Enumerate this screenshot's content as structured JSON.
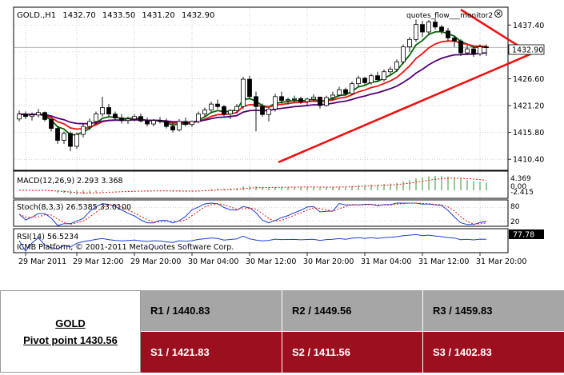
{
  "chart_data": {
    "type": "candlestick",
    "header": {
      "symbol": "GOLD.,H1",
      "open": "1432.70",
      "high": "1433.50",
      "low": "1431.20",
      "close": "1432.90",
      "indicator_label": "quotes_flow___monitor2"
    },
    "price_axis": {
      "range": [
        1408.5,
        1440.5
      ],
      "ticks": [
        "1437.40",
        "1432.00",
        "1426.60",
        "1421.20",
        "1415.80",
        "1410.40"
      ],
      "current_price": "1432.90"
    },
    "time_axis": {
      "labels": [
        "29 Mar 2011",
        "29 Mar 12:00",
        "29 Mar 20:00",
        "30 Mar 04:00",
        "30 Mar 12:00",
        "30 Mar 20:00",
        "31 Mar 04:00",
        "31 Mar 12:00",
        "31 Mar 20:00"
      ]
    },
    "candles": [
      [
        1418.5,
        1420.2,
        1418.0,
        1419.5
      ],
      [
        1419.5,
        1420.0,
        1418.5,
        1419.0
      ],
      [
        1419.0,
        1419.8,
        1418.2,
        1419.3
      ],
      [
        1419.3,
        1420.5,
        1418.8,
        1419.8
      ],
      [
        1419.8,
        1420.0,
        1418.0,
        1418.4
      ],
      [
        1418.4,
        1418.8,
        1416.0,
        1416.6
      ],
      [
        1416.6,
        1417.0,
        1413.5,
        1414.2
      ],
      [
        1414.2,
        1416.0,
        1413.5,
        1415.6
      ],
      [
        1415.6,
        1416.0,
        1412.0,
        1413.0
      ],
      [
        1413.0,
        1415.8,
        1412.5,
        1415.4
      ],
      [
        1415.4,
        1417.5,
        1414.8,
        1417.0
      ],
      [
        1417.0,
        1418.6,
        1416.3,
        1418.0
      ],
      [
        1418.0,
        1420.0,
        1417.5,
        1419.5
      ],
      [
        1419.5,
        1423.0,
        1419.0,
        1420.8
      ],
      [
        1420.8,
        1421.5,
        1419.0,
        1419.5
      ],
      [
        1419.5,
        1420.0,
        1418.3,
        1418.7
      ],
      [
        1418.7,
        1419.5,
        1417.6,
        1418.2
      ],
      [
        1418.2,
        1419.0,
        1417.5,
        1418.5
      ],
      [
        1418.5,
        1419.5,
        1418.0,
        1419.0
      ],
      [
        1419.0,
        1419.6,
        1417.8,
        1418.1
      ],
      [
        1418.1,
        1418.8,
        1417.0,
        1417.5
      ],
      [
        1417.5,
        1418.5,
        1417.0,
        1418.2
      ],
      [
        1418.2,
        1418.9,
        1417.6,
        1418.0
      ],
      [
        1418.0,
        1418.6,
        1416.6,
        1417.0
      ],
      [
        1417.0,
        1417.8,
        1415.8,
        1416.3
      ],
      [
        1416.3,
        1418.5,
        1416.0,
        1418.0
      ],
      [
        1418.0,
        1418.8,
        1417.0,
        1417.4
      ],
      [
        1417.4,
        1418.2,
        1416.9,
        1418.0
      ],
      [
        1418.0,
        1420.0,
        1417.6,
        1419.5
      ],
      [
        1419.5,
        1420.8,
        1419.0,
        1420.3
      ],
      [
        1420.3,
        1422.0,
        1419.8,
        1421.5
      ],
      [
        1421.5,
        1422.4,
        1420.5,
        1421.0
      ],
      [
        1421.0,
        1421.3,
        1419.0,
        1419.5
      ],
      [
        1419.5,
        1420.5,
        1418.5,
        1420.2
      ],
      [
        1420.2,
        1421.5,
        1419.6,
        1421.0
      ],
      [
        1421.0,
        1427.0,
        1420.5,
        1426.5
      ],
      [
        1426.5,
        1427.2,
        1422.5,
        1423.0
      ],
      [
        1423.0,
        1424.0,
        1416.0,
        1421.0
      ],
      [
        1421.0,
        1421.6,
        1419.0,
        1419.4
      ],
      [
        1419.4,
        1420.8,
        1418.0,
        1420.5
      ],
      [
        1420.5,
        1423.6,
        1420.0,
        1423.0
      ],
      [
        1423.0,
        1424.0,
        1421.6,
        1422.2
      ],
      [
        1422.2,
        1422.8,
        1421.4,
        1422.4
      ],
      [
        1422.4,
        1423.2,
        1421.8,
        1422.6
      ],
      [
        1422.6,
        1423.0,
        1421.5,
        1422.0
      ],
      [
        1422.0,
        1422.8,
        1421.2,
        1422.5
      ],
      [
        1422.5,
        1423.5,
        1421.9,
        1422.9
      ],
      [
        1422.9,
        1423.0,
        1420.6,
        1421.2
      ],
      [
        1421.2,
        1423.2,
        1421.0,
        1422.8
      ],
      [
        1422.8,
        1424.0,
        1422.2,
        1423.3
      ],
      [
        1423.3,
        1425.0,
        1423.0,
        1424.4
      ],
      [
        1424.4,
        1424.8,
        1423.2,
        1423.6
      ],
      [
        1423.6,
        1426.0,
        1423.4,
        1425.6
      ],
      [
        1425.6,
        1427.2,
        1425.0,
        1426.7
      ],
      [
        1426.7,
        1427.0,
        1425.4,
        1425.8
      ],
      [
        1425.8,
        1427.6,
        1425.4,
        1427.2
      ],
      [
        1427.2,
        1428.0,
        1426.0,
        1426.4
      ],
      [
        1426.4,
        1428.5,
        1426.0,
        1428.0
      ],
      [
        1428.0,
        1429.0,
        1427.4,
        1428.5
      ],
      [
        1428.5,
        1430.5,
        1428.0,
        1430.0
      ],
      [
        1430.0,
        1433.5,
        1429.5,
        1433.0
      ],
      [
        1433.0,
        1435.0,
        1432.0,
        1434.5
      ],
      [
        1434.5,
        1438.5,
        1434.0,
        1437.5
      ],
      [
        1437.5,
        1438.2,
        1435.0,
        1436.0
      ],
      [
        1436.0,
        1438.4,
        1435.4,
        1438.0
      ],
      [
        1438.0,
        1438.8,
        1436.5,
        1437.0
      ],
      [
        1437.0,
        1437.4,
        1435.5,
        1436.2
      ],
      [
        1436.2,
        1436.8,
        1434.2,
        1434.8
      ],
      [
        1434.8,
        1435.2,
        1433.0,
        1434.2
      ],
      [
        1434.2,
        1434.6,
        1431.2,
        1431.8
      ],
      [
        1431.8,
        1433.4,
        1431.4,
        1432.6
      ],
      [
        1432.6,
        1433.0,
        1431.0,
        1431.6
      ],
      [
        1431.6,
        1433.5,
        1431.2,
        1433.0
      ],
      [
        1433.0,
        1433.5,
        1431.2,
        1432.9
      ]
    ],
    "trendlines": [
      {
        "from": [
          40.5,
          1409.8
        ],
        "to": [
          80,
          1431.6
        ],
        "color": "#ee1111"
      },
      {
        "from": [
          69,
          1440.5
        ],
        "to": [
          80,
          1431.6
        ],
        "color": "#ee1111"
      }
    ],
    "moving_averages": [
      {
        "color": "#006600",
        "period": 5
      },
      {
        "color": "#ee1111",
        "period": 10
      },
      {
        "color": "#550077",
        "period": 20
      }
    ],
    "macd": {
      "label": "MACD(12,26,9) 2.293 3.368",
      "axis_labels": [
        "4.369",
        "0.00",
        "-2.415"
      ]
    },
    "stochastic": {
      "label": "Stoch(8,3,3) 26.5385 33.0100",
      "axis_labels": [
        "80",
        "20"
      ]
    },
    "rsi": {
      "label": "RSI(14) 56.5234",
      "value_box": "77.78"
    },
    "copyright": "ICMB Platform, © 2001-2011 MetaQuotes Software Corp."
  },
  "pivot_table": {
    "symbol": "GOLD",
    "pivot_label": "Pivot point 1430.56",
    "resistance": [
      "R1 / 1440.83",
      "R2 / 1449.56",
      "R3 / 1459.83"
    ],
    "support": [
      "S1 / 1421.83",
      "S2 / 1411.56",
      "S3 / 1402.83"
    ],
    "colors": {
      "resistance_bg": "#a6a6a6",
      "support_bg": "#9c0f1e"
    }
  }
}
